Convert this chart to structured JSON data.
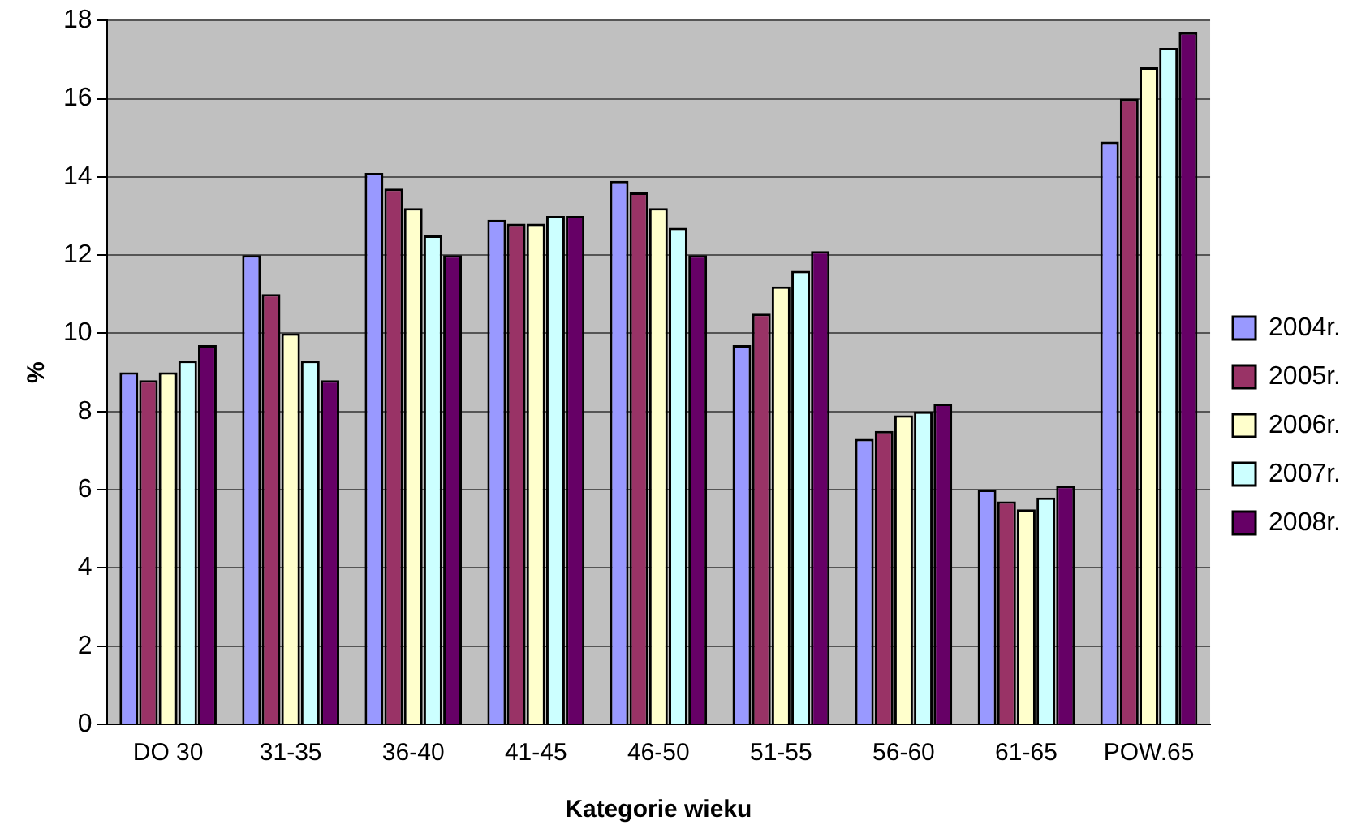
{
  "chart_data": {
    "type": "bar",
    "xlabel": "Kategorie wieku",
    "ylabel": "%",
    "categories": [
      "DO 30",
      "31-35",
      "36-40",
      "41-45",
      "46-50",
      "51-55",
      "56-60",
      "61-65",
      "POW.65"
    ],
    "series": [
      {
        "name": "2004r.",
        "color": "#9999ff",
        "values": [
          9.0,
          12.0,
          14.1,
          12.9,
          13.9,
          9.7,
          7.3,
          6.0,
          14.9
        ]
      },
      {
        "name": "2005r.",
        "color": "#993366",
        "values": [
          8.8,
          11.0,
          13.7,
          12.8,
          13.6,
          10.5,
          7.5,
          5.7,
          16.0
        ]
      },
      {
        "name": "2006r.",
        "color": "#ffffcc",
        "values": [
          9.0,
          10.0,
          13.2,
          12.8,
          13.2,
          11.2,
          7.9,
          5.5,
          16.8
        ]
      },
      {
        "name": "2007r.",
        "color": "#ccffff",
        "values": [
          9.3,
          9.3,
          12.5,
          13.0,
          12.7,
          11.6,
          8.0,
          5.8,
          17.3
        ]
      },
      {
        "name": "2008r.",
        "color": "#660066",
        "values": [
          9.7,
          8.8,
          12.0,
          13.0,
          12.0,
          12.1,
          8.2,
          6.1,
          17.7
        ]
      }
    ],
    "ylim": [
      0,
      18
    ],
    "yticks": [
      0,
      2,
      4,
      6,
      8,
      10,
      12,
      14,
      16,
      18
    ],
    "grid": "y",
    "legend": "right"
  }
}
